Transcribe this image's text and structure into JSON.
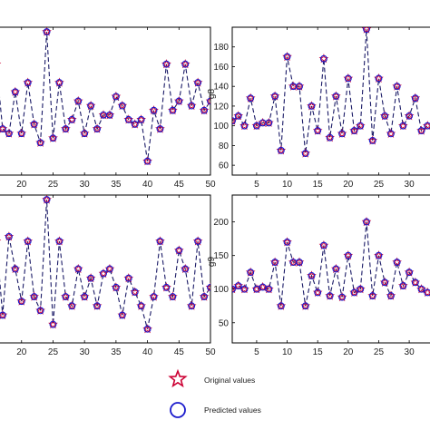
{
  "legend": {
    "original_label": "Original values",
    "predicted_label": "Predicted values",
    "original_color": "#cc0033",
    "predicted_color": "#1a1acc"
  },
  "colors": {
    "dash_line": "#1a1a66",
    "axis": "#000000",
    "background": "#ffffff"
  },
  "chart_data": [
    {
      "type": "line",
      "ylabel": "",
      "xlim": [
        16,
        50
      ],
      "ylim": [
        40,
        200
      ],
      "xticks": [
        20,
        25,
        30,
        35,
        40,
        45,
        50
      ],
      "yticks": [],
      "grid": false,
      "series": [
        {
          "name": "Original values",
          "x": [
            16,
            17,
            18,
            19,
            20,
            21,
            22,
            23,
            24,
            25,
            26,
            27,
            28,
            29,
            30,
            31,
            32,
            33,
            34,
            35,
            36,
            37,
            38,
            39,
            40,
            41,
            42,
            43,
            44,
            45,
            46,
            47,
            48,
            49,
            50
          ],
          "y": [
            160,
            90,
            85,
            130,
            85,
            140,
            95,
            75,
            195,
            80,
            140,
            90,
            100,
            120,
            85,
            115,
            90,
            105,
            105,
            125,
            115,
            100,
            95,
            100,
            55,
            110,
            90,
            160,
            110,
            120,
            160,
            115,
            140,
            110,
            120
          ]
        },
        {
          "name": "Predicted values",
          "x": [
            16,
            17,
            18,
            19,
            20,
            21,
            22,
            23,
            24,
            25,
            26,
            27,
            28,
            29,
            30,
            31,
            32,
            33,
            34,
            35,
            36,
            37,
            38,
            39,
            40,
            41,
            42,
            43,
            44,
            45,
            46,
            47,
            48,
            49,
            50
          ],
          "y": [
            160,
            90,
            85,
            130,
            85,
            140,
            95,
            75,
            195,
            80,
            140,
            90,
            100,
            120,
            85,
            115,
            90,
            105,
            105,
            125,
            115,
            100,
            95,
            100,
            55,
            110,
            90,
            160,
            110,
            120,
            160,
            115,
            140,
            110,
            120
          ]
        }
      ]
    },
    {
      "type": "line",
      "ylabel": "g8",
      "xlim": [
        1,
        34
      ],
      "ylim": [
        50,
        200
      ],
      "xticks": [
        5,
        10,
        15,
        20,
        25,
        30
      ],
      "yticks": [
        60,
        80,
        100,
        120,
        140,
        160,
        180
      ],
      "grid": false,
      "series": [
        {
          "name": "Original values",
          "x": [
            1,
            2,
            3,
            4,
            5,
            6,
            7,
            8,
            9,
            10,
            11,
            12,
            13,
            14,
            15,
            16,
            17,
            18,
            19,
            20,
            21,
            22,
            23,
            24,
            25,
            26,
            27,
            28,
            29,
            30,
            31,
            32,
            33
          ],
          "y": [
            105,
            110,
            100,
            128,
            100,
            103,
            103,
            130,
            75,
            170,
            140,
            140,
            72,
            120,
            95,
            168,
            88,
            130,
            92,
            148,
            95,
            100,
            198,
            85,
            148,
            110,
            92,
            140,
            100,
            110,
            128,
            95,
            100
          ]
        },
        {
          "name": "Predicted values",
          "x": [
            1,
            2,
            3,
            4,
            5,
            6,
            7,
            8,
            9,
            10,
            11,
            12,
            13,
            14,
            15,
            16,
            17,
            18,
            19,
            20,
            21,
            22,
            23,
            24,
            25,
            26,
            27,
            28,
            29,
            30,
            31,
            32,
            33
          ],
          "y": [
            105,
            110,
            100,
            128,
            100,
            103,
            103,
            130,
            75,
            170,
            140,
            140,
            72,
            120,
            95,
            168,
            88,
            130,
            92,
            148,
            95,
            100,
            198,
            85,
            148,
            110,
            92,
            140,
            100,
            110,
            128,
            95,
            100
          ]
        }
      ]
    },
    {
      "type": "line",
      "ylabel": "",
      "xlim": [
        16,
        50
      ],
      "ylim": [
        40,
        200
      ],
      "xticks": [
        20,
        25,
        30,
        35,
        40,
        45,
        50
      ],
      "yticks": [],
      "grid": false,
      "series": [
        {
          "name": "Original values",
          "x": [
            16,
            17,
            18,
            19,
            20,
            21,
            22,
            23,
            24,
            25,
            26,
            27,
            28,
            29,
            30,
            31,
            32,
            33,
            34,
            35,
            36,
            37,
            38,
            39,
            40,
            41,
            42,
            43,
            44,
            45,
            46,
            47,
            48,
            49,
            50
          ],
          "y": [
            150,
            70,
            155,
            120,
            85,
            150,
            90,
            75,
            195,
            60,
            150,
            90,
            80,
            120,
            90,
            110,
            80,
            115,
            120,
            100,
            70,
            110,
            95,
            80,
            55,
            90,
            150,
            100,
            90,
            140,
            120,
            80,
            150,
            90,
            100
          ]
        },
        {
          "name": "Predicted values",
          "x": [
            16,
            17,
            18,
            19,
            20,
            21,
            22,
            23,
            24,
            25,
            26,
            27,
            28,
            29,
            30,
            31,
            32,
            33,
            34,
            35,
            36,
            37,
            38,
            39,
            40,
            41,
            42,
            43,
            44,
            45,
            46,
            47,
            48,
            49,
            50
          ],
          "y": [
            150,
            70,
            155,
            120,
            85,
            150,
            90,
            75,
            195,
            60,
            150,
            90,
            80,
            120,
            90,
            110,
            80,
            115,
            120,
            100,
            70,
            110,
            95,
            80,
            55,
            90,
            150,
            100,
            90,
            140,
            120,
            80,
            150,
            90,
            100
          ]
        }
      ]
    },
    {
      "type": "line",
      "ylabel": "g9",
      "xlim": [
        1,
        34
      ],
      "ylim": [
        20,
        240
      ],
      "xticks": [
        5,
        10,
        15,
        20,
        25,
        30
      ],
      "yticks": [
        50,
        100,
        150,
        200
      ],
      "grid": false,
      "series": [
        {
          "name": "Original values",
          "x": [
            1,
            2,
            3,
            4,
            5,
            6,
            7,
            8,
            9,
            10,
            11,
            12,
            13,
            14,
            15,
            16,
            17,
            18,
            19,
            20,
            21,
            22,
            23,
            24,
            25,
            26,
            27,
            28,
            29,
            30,
            31,
            32,
            33
          ],
          "y": [
            100,
            105,
            100,
            125,
            100,
            103,
            100,
            140,
            75,
            170,
            140,
            140,
            75,
            120,
            95,
            165,
            90,
            130,
            88,
            150,
            95,
            100,
            200,
            90,
            150,
            110,
            90,
            140,
            105,
            125,
            110,
            100,
            95
          ]
        },
        {
          "name": "Predicted values",
          "x": [
            1,
            2,
            3,
            4,
            5,
            6,
            7,
            8,
            9,
            10,
            11,
            12,
            13,
            14,
            15,
            16,
            17,
            18,
            19,
            20,
            21,
            22,
            23,
            24,
            25,
            26,
            27,
            28,
            29,
            30,
            31,
            32,
            33
          ],
          "y": [
            100,
            105,
            100,
            125,
            100,
            103,
            100,
            140,
            75,
            170,
            140,
            140,
            75,
            120,
            95,
            165,
            90,
            130,
            88,
            150,
            95,
            100,
            200,
            90,
            150,
            110,
            90,
            140,
            105,
            125,
            110,
            100,
            95
          ]
        }
      ]
    }
  ]
}
